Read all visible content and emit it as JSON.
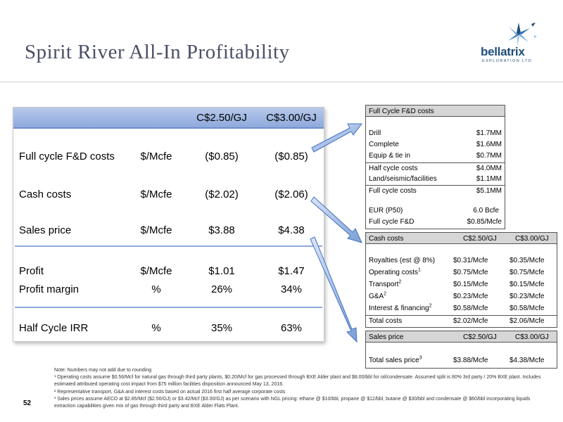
{
  "title": "Spirit River All-In Profitability",
  "logo": {
    "word": "bellatrix",
    "sub": "EXPLORATION LTD"
  },
  "page_number": "52",
  "main_table": {
    "headers": [
      "C$2.50/GJ",
      "C$3.00/GJ"
    ],
    "rows": [
      {
        "label": "Full cycle F&D costs",
        "unit": "$/Mcfe",
        "v1": "($0.85)",
        "v2": "($0.85)"
      },
      {
        "label": "Cash costs",
        "unit": "$/Mcfe",
        "v1": "($2.02)",
        "v2": "($2.06)"
      },
      {
        "label": "Sales price",
        "unit": "$/Mcfe",
        "v1": "$3.88",
        "v2": "$4.38"
      },
      {
        "label": "Profit",
        "unit": "$/Mcfe",
        "v1": "$1.01",
        "v2": "$1.47"
      },
      {
        "label": "Profit margin",
        "unit": "%",
        "v1": "26%",
        "v2": "34%"
      },
      {
        "label": "Half Cycle IRR",
        "unit": "%",
        "v1": "35%",
        "v2": "63%"
      }
    ]
  },
  "fd_table": {
    "header": "Full Cycle F&D costs",
    "rows": [
      {
        "label": "Drill",
        "value": "$1.7MM"
      },
      {
        "label": "Complete",
        "value": "$1.6MM"
      },
      {
        "label": "Equip & tie in",
        "value": "$0.7MM"
      },
      {
        "label": "Half cycle costs",
        "value": "$4.0MM"
      },
      {
        "label": "Land/seismic/facilities",
        "value": "$1.1MM"
      },
      {
        "label": "Full cycle costs",
        "value": "$5.1MM"
      },
      {
        "label": "EUR (P50)",
        "value": "6.0 Bcfe"
      },
      {
        "label": "Full cycle F&D",
        "value": "$0.85/Mcfe"
      }
    ]
  },
  "cash_table": {
    "header": "Cash costs",
    "cols": [
      "C$2.50/GJ",
      "C$3.00/GJ"
    ],
    "rows": [
      {
        "label": "Royalties (est @ 8%)",
        "sup": "",
        "v1": "$0.31/Mcfe",
        "v2": "$0.35/Mcfe"
      },
      {
        "label": "Operating costs",
        "sup": "1",
        "v1": "$0.75/Mcfe",
        "v2": "$0.75/Mcfe"
      },
      {
        "label": "Transport",
        "sup": "2",
        "v1": "$0.15/Mcfe",
        "v2": "$0.15/Mcfe"
      },
      {
        "label": "G&A",
        "sup": "2",
        "v1": "$0.23/Mcfe",
        "v2": "$0.23/Mcfe"
      },
      {
        "label": "Interest & financing",
        "sup": "2",
        "v1": "$0.58/Mcfe",
        "v2": "$0.58/Mcfe"
      },
      {
        "label": "Total costs",
        "sup": "",
        "v1": "$2.02/Mcfe",
        "v2": "$2.06/Mcfe"
      }
    ]
  },
  "sales_table": {
    "header": "Sales price",
    "cols": [
      "C$2.50/GJ",
      "C$3.00/GJ"
    ],
    "row": {
      "label": "Total sales price",
      "sup": "3",
      "v1": "$3.88/Mcfe",
      "v2": "$4.38/Mcfe"
    }
  },
  "footnotes": [
    "Note: Numbers may not add due to rounding",
    "¹ Operating costs assume $0.56/Mcf for natural gas through third party plants, $0.20/Mcf for gas processed through BXE Alder plant and $8.00/bbl for oil/condensate.  Assumed split is 80% 3rd party / 20% BXE plant.  Includes estimated attributed operating cost impact from $75 million facilities disposition announced May 13, 2016.",
    "² Representative transport, G&A and interest costs based on actual 2016 first half average corporate costs",
    "³ Sales prices assume AECO at $2.85/Mcf ($2.50/GJ) or $3.42/Mcf ($3.00/GJ) as per scenario with NGL pricing: ethane @ $10/bbl, propane @ $12/bbl, butane @ $30/bbl and condensate @ $60/bbl incorporating liquids extraction capabilities given mix of gas through third party and BXE Alder Flats Plant."
  ]
}
